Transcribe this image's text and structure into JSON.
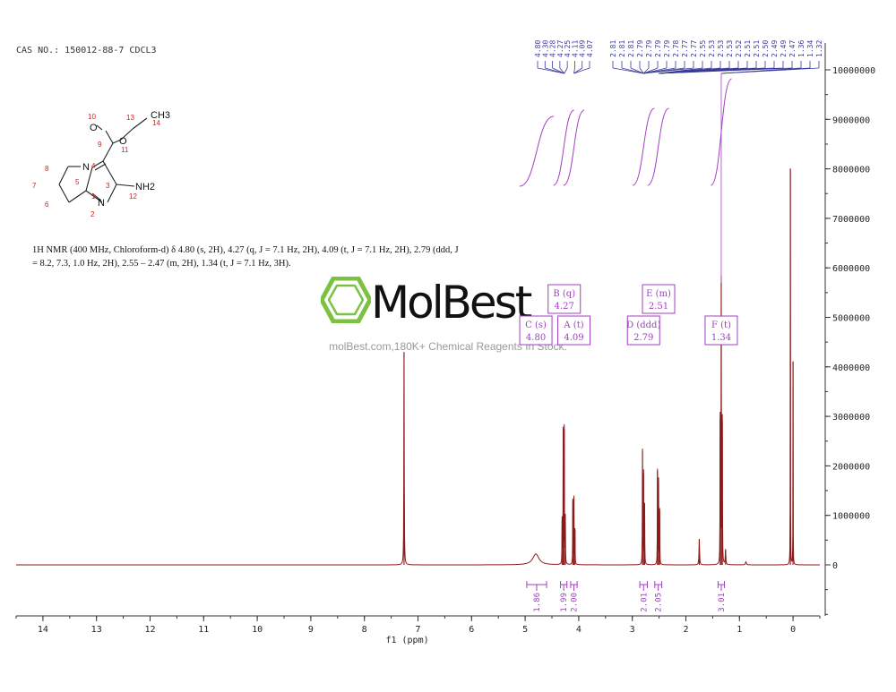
{
  "header": {
    "cas": "CAS NO.: 150012-88-7 CDCL3",
    "nmr_description": "1H NMR (400 MHz, Chloroform-d) δ 4.80 (s, 2H), 4.27 (q, J = 7.1 Hz, 2H), 4.09 (t, J = 7.1 Hz, 2H), 2.79 (ddd, J = 8.2, 7.3, 1.0 Hz, 2H), 2.55 – 2.47 (m, 2H), 1.34 (t, J = 7.1 Hz, 3H)."
  },
  "watermark": {
    "name": "MolBest",
    "tagline": "molBest.com,180K+ Chemical Reagents In Stock."
  },
  "structure": {
    "atoms": [
      "O",
      "O",
      "N",
      "N",
      "NH2",
      "CH3"
    ],
    "numbers": [
      "1",
      "2",
      "3",
      "4",
      "5",
      "6",
      "7",
      "8",
      "9",
      "10",
      "11",
      "12",
      "13",
      "14"
    ]
  },
  "colors": {
    "spectrum": "#8b1a1a",
    "annotation": "#a040c0",
    "peak_labels": "#3a3a9a",
    "atom_numbers": "#d22020",
    "axis": "#333333"
  },
  "chart_data": {
    "type": "line",
    "xlabel": "f1 (ppm)",
    "x_range": [
      14.5,
      -0.5
    ],
    "y_range": [
      -1000000,
      10000000
    ],
    "x_ticks": [
      "14",
      "13",
      "12",
      "11",
      "10",
      "9",
      "8",
      "7",
      "6",
      "5",
      "4",
      "3",
      "2",
      "1",
      "0"
    ],
    "y_ticks": [
      "10000000",
      "9000000",
      "8000000",
      "7000000",
      "6000000",
      "5000000",
      "4000000",
      "3000000",
      "2000000",
      "1000000",
      "0"
    ],
    "peaks": [
      {
        "ppm": 7.26,
        "height": 4300000,
        "width": 0.004
      },
      {
        "ppm": 4.8,
        "height": 220000,
        "width": 0.07
      },
      {
        "ppm": 4.29,
        "height": 2700000,
        "width": 0.003
      },
      {
        "ppm": 4.27,
        "height": 2750000,
        "width": 0.003
      },
      {
        "ppm": 4.25,
        "height": 950000,
        "width": 0.003
      },
      {
        "ppm": 4.31,
        "height": 900000,
        "width": 0.003
      },
      {
        "ppm": 4.11,
        "height": 1300000,
        "width": 0.003
      },
      {
        "ppm": 4.09,
        "height": 1350000,
        "width": 0.003
      },
      {
        "ppm": 4.07,
        "height": 700000,
        "width": 0.003
      },
      {
        "ppm": 2.81,
        "height": 2300000,
        "width": 0.003
      },
      {
        "ppm": 2.79,
        "height": 1850000,
        "width": 0.003
      },
      {
        "ppm": 2.77,
        "height": 1200000,
        "width": 0.003
      },
      {
        "ppm": 2.53,
        "height": 1900000,
        "width": 0.003
      },
      {
        "ppm": 2.51,
        "height": 1700000,
        "width": 0.003
      },
      {
        "ppm": 2.49,
        "height": 1100000,
        "width": 0.003
      },
      {
        "ppm": 1.75,
        "height": 520000,
        "width": 0.006
      },
      {
        "ppm": 1.36,
        "height": 2950000,
        "width": 0.003
      },
      {
        "ppm": 1.34,
        "height": 5700000,
        "width": 0.003
      },
      {
        "ppm": 1.32,
        "height": 2900000,
        "width": 0.003
      },
      {
        "ppm": 1.26,
        "height": 300000,
        "width": 0.006
      },
      {
        "ppm": 0.88,
        "height": 60000,
        "width": 0.01
      },
      {
        "ppm": 0.05,
        "height": 8000000,
        "width": 0.002
      },
      {
        "ppm": 0.0,
        "height": 4100000,
        "width": 0.002
      }
    ],
    "multiplets": [
      {
        "letter": "B",
        "mult": "q",
        "shift": "4.27",
        "label_ppm": 4.27,
        "row": "upper"
      },
      {
        "letter": "E",
        "mult": "m",
        "shift": "2.51",
        "label_ppm": 2.51,
        "row": "upper"
      },
      {
        "letter": "C",
        "mult": "s",
        "shift": "4.80",
        "label_ppm": 4.8,
        "row": "lower"
      },
      {
        "letter": "A",
        "mult": "t",
        "shift": "4.09",
        "label_ppm": 4.09,
        "row": "lower"
      },
      {
        "letter": "D",
        "mult": "ddd",
        "shift": "2.79",
        "label_ppm": 2.79,
        "row": "lower"
      },
      {
        "letter": "F",
        "mult": "t",
        "shift": "1.34",
        "label_ppm": 1.34,
        "row": "lower"
      }
    ],
    "integrals": [
      {
        "from": 4.97,
        "to": 4.6,
        "value": "1.86"
      },
      {
        "from": 4.34,
        "to": 4.22,
        "value": "1.99"
      },
      {
        "from": 4.15,
        "to": 4.03,
        "value": "2.00"
      },
      {
        "from": 2.86,
        "to": 2.72,
        "value": "2.01"
      },
      {
        "from": 2.58,
        "to": 2.45,
        "value": "2.05"
      },
      {
        "from": 1.4,
        "to": 1.28,
        "value": "3.01"
      }
    ],
    "peak_labels_group1": [
      "4.80",
      "4.30",
      "4.28",
      "4.27",
      "4.25",
      "4.11",
      "4.09",
      "4.07"
    ],
    "peak_labels_group2": [
      "2.81",
      "2.81",
      "2.81",
      "2.79",
      "2.79",
      "2.79",
      "2.79",
      "2.78",
      "2.77",
      "2.77",
      "2.55",
      "2.53",
      "2.53",
      "2.53",
      "2.52",
      "2.51",
      "2.51",
      "2.50",
      "2.49",
      "2.49",
      "2.47",
      "1.36",
      "1.34",
      "1.32"
    ]
  }
}
